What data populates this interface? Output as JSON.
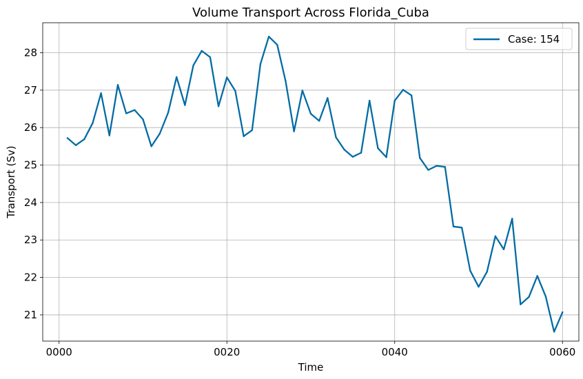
{
  "chart_data": {
    "type": "line",
    "title": "Volume Transport Across Florida_Cuba",
    "xlabel": "Time",
    "ylabel": "Transport (Sv)",
    "xlim": [
      -1.95,
      61.95
    ],
    "ylim": [
      20.3,
      28.8
    ],
    "xticks": [
      {
        "value": 0,
        "label": "0000"
      },
      {
        "value": 20,
        "label": "0020"
      },
      {
        "value": 40,
        "label": "0040"
      },
      {
        "value": 60,
        "label": "0060"
      }
    ],
    "yticks": [
      {
        "value": 21,
        "label": "21"
      },
      {
        "value": 22,
        "label": "22"
      },
      {
        "value": 23,
        "label": "23"
      },
      {
        "value": 24,
        "label": "24"
      },
      {
        "value": 25,
        "label": "25"
      },
      {
        "value": 26,
        "label": "26"
      },
      {
        "value": 27,
        "label": "27"
      },
      {
        "value": 28,
        "label": "28"
      }
    ],
    "grid": true,
    "legend": {
      "position": "upper right"
    },
    "series": [
      {
        "name": "Case: 154",
        "color": "#006ba4",
        "x": [
          1,
          2,
          3,
          4,
          5,
          6,
          7,
          8,
          9,
          10,
          11,
          12,
          13,
          14,
          15,
          16,
          17,
          18,
          19,
          20,
          21,
          22,
          23,
          24,
          25,
          26,
          27,
          28,
          29,
          30,
          31,
          32,
          33,
          34,
          35,
          36,
          37,
          38,
          39,
          40,
          41,
          42,
          43,
          44,
          45,
          46,
          47,
          48,
          49,
          50,
          51,
          52,
          53,
          54,
          55,
          56,
          57,
          58,
          59,
          60
        ],
        "y": [
          25.72,
          25.53,
          25.69,
          26.12,
          26.92,
          25.79,
          27.14,
          26.38,
          26.47,
          26.22,
          25.5,
          25.84,
          26.4,
          27.35,
          26.6,
          27.66,
          28.05,
          27.88,
          26.57,
          27.34,
          26.98,
          25.77,
          25.93,
          27.7,
          28.43,
          28.21,
          27.24,
          25.9,
          26.99,
          26.37,
          26.18,
          26.79,
          25.74,
          25.41,
          25.22,
          25.33,
          26.72,
          25.45,
          25.21,
          26.72,
          27.01,
          26.86,
          25.19,
          24.87,
          24.98,
          24.95,
          23.36,
          23.33,
          22.18,
          21.75,
          22.15,
          23.1,
          22.75,
          23.57,
          21.28,
          21.48,
          22.04,
          21.49,
          20.55,
          21.07
        ]
      }
    ]
  }
}
